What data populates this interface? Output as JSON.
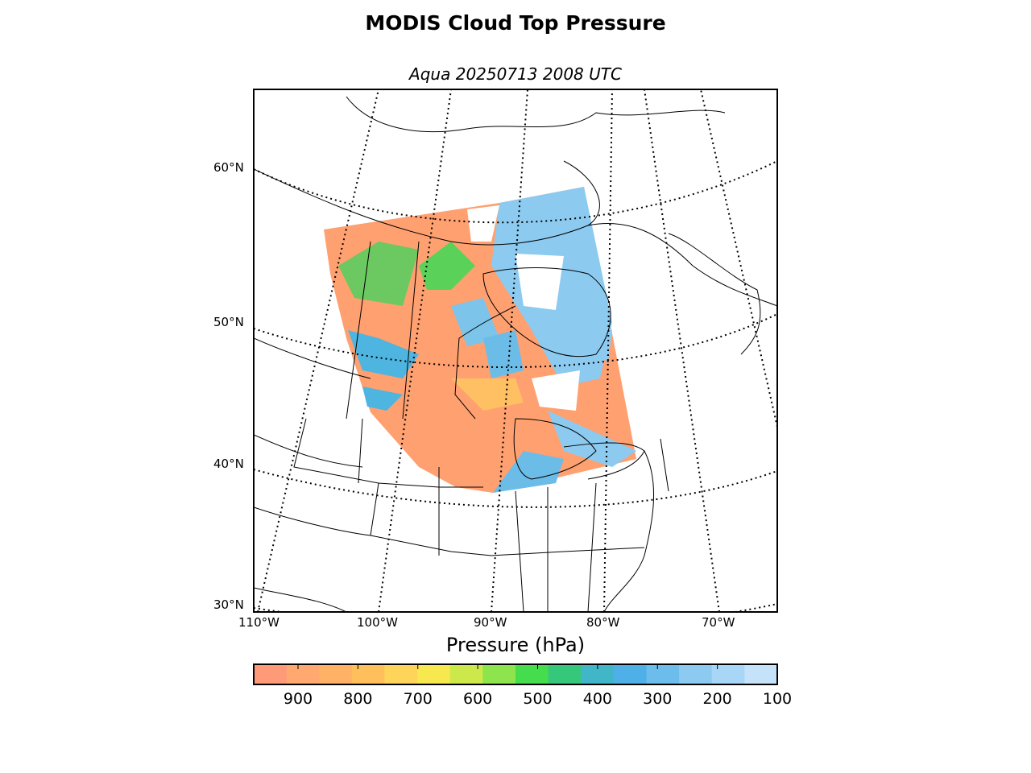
{
  "title": "MODIS Cloud Top Pressure",
  "subtitle": "Aqua 20250713 2008 UTC",
  "map": {
    "lat_labels": [
      "60°N",
      "50°N",
      "40°N",
      "30°N"
    ],
    "lon_labels": [
      "110°W",
      "100°W",
      "90°W",
      "80°W",
      "70°W"
    ]
  },
  "colorbar": {
    "title": "Pressure (hPa)",
    "ticks": [
      "900",
      "800",
      "700",
      "600",
      "500",
      "400",
      "300",
      "200",
      "100"
    ],
    "colors": [
      "#ff9a78",
      "#ffa870",
      "#ffb266",
      "#ffc05c",
      "#ffd45a",
      "#f6e84e",
      "#cde84a",
      "#8ee44c",
      "#45dc4e",
      "#36c87a",
      "#40b6c8",
      "#4eb0e6",
      "#6cbcec",
      "#8ccaf2",
      "#a8d6f6",
      "#c4e2fa"
    ]
  }
}
